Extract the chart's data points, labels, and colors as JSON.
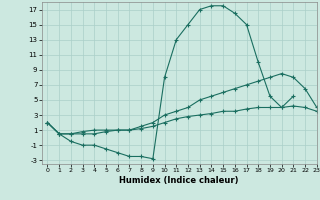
{
  "xlabel": "Humidex (Indice chaleur)",
  "background_color": "#cce8e0",
  "grid_color": "#aacfc8",
  "line_color": "#1a6e60",
  "xlim": [
    -0.5,
    23
  ],
  "ylim": [
    -3.5,
    18
  ],
  "xticks": [
    0,
    1,
    2,
    3,
    4,
    5,
    6,
    7,
    8,
    9,
    10,
    11,
    12,
    13,
    14,
    15,
    16,
    17,
    18,
    19,
    20,
    21,
    22,
    23
  ],
  "yticks": [
    -3,
    -1,
    1,
    3,
    5,
    7,
    9,
    11,
    13,
    15,
    17
  ],
  "curve1_x": [
    0,
    1,
    2,
    3,
    4,
    5,
    6,
    7,
    8,
    9,
    10,
    11,
    12,
    13,
    14,
    15,
    16,
    17,
    18,
    19,
    20,
    21,
    22
  ],
  "curve1_y": [
    2,
    0.5,
    -0.5,
    -1,
    -1,
    -1.5,
    -2,
    -2.5,
    -2.5,
    -2.8,
    8,
    13,
    15,
    17,
    17.5,
    17.5,
    16.5,
    15,
    10,
    5.5,
    4,
    5.5,
    null
  ],
  "curve2_x": [
    0,
    1,
    2,
    3,
    4,
    5,
    6,
    7,
    8,
    9,
    10,
    11,
    12,
    13,
    14,
    15,
    16,
    17,
    18,
    19,
    20,
    21,
    22,
    23
  ],
  "curve2_y": [
    2,
    0.5,
    0.5,
    0.8,
    1,
    1,
    1,
    1,
    1.5,
    2,
    3,
    3.5,
    4,
    5,
    5.5,
    6,
    6.5,
    7,
    7.5,
    8,
    8.5,
    8,
    6.5,
    4
  ],
  "curve3_x": [
    0,
    1,
    2,
    3,
    4,
    5,
    6,
    7,
    8,
    9,
    10,
    11,
    12,
    13,
    14,
    15,
    16,
    17,
    18,
    19,
    20,
    21,
    22,
    23
  ],
  "curve3_y": [
    2,
    0.5,
    0.5,
    0.5,
    0.5,
    0.8,
    1,
    1,
    1.2,
    1.5,
    2,
    2.5,
    2.8,
    3,
    3.2,
    3.5,
    3.5,
    3.8,
    4,
    4,
    4,
    4.2,
    4,
    3.5
  ]
}
